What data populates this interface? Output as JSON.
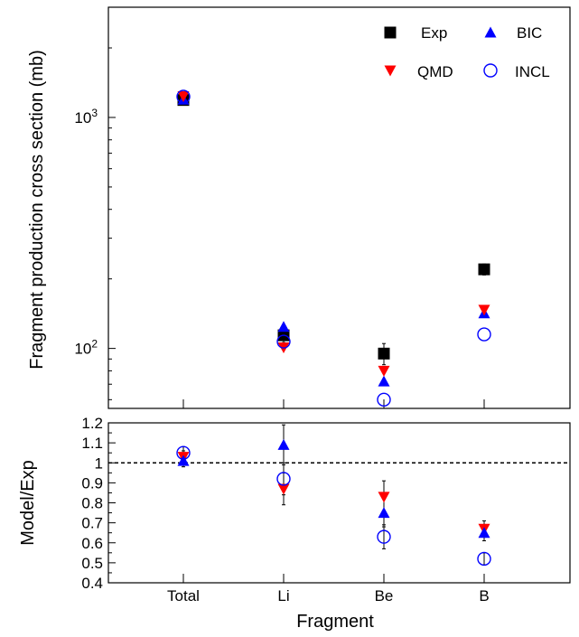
{
  "chart_data": {
    "type": "scatter",
    "xlabel": "Fragment",
    "categories": [
      "Total",
      "Li",
      "Be",
      "B"
    ],
    "colors": {
      "Exp": "#000000",
      "QMD": "#ff0000",
      "BIC": "#0000ff",
      "INCL": "#0000ff"
    },
    "legend": {
      "placement": "top-right",
      "entries": [
        {
          "name": "Exp",
          "marker": "square"
        },
        {
          "name": "BIC",
          "marker": "triangle-up"
        },
        {
          "name": "QMD",
          "marker": "triangle-down"
        },
        {
          "name": "INCL",
          "marker": "circle-open"
        }
      ]
    },
    "top_panel": {
      "ylabel": "Fragment production cross section (mb)",
      "yscale": "log",
      "ylim": [
        55,
        3000
      ],
      "yticks": [
        {
          "value": 100,
          "base": "10",
          "exp": "2"
        },
        {
          "value": 1000,
          "base": "10",
          "exp": "3"
        }
      ],
      "series": [
        {
          "name": "Exp",
          "marker": "square",
          "values": [
            1190,
            114,
            95,
            220
          ],
          "errors": [
            20,
            8,
            10,
            12
          ]
        },
        {
          "name": "QMD",
          "marker": "triangle-down",
          "values": [
            1235,
            101,
            80,
            147
          ],
          "errors": [
            0,
            0,
            0,
            0
          ]
        },
        {
          "name": "BIC",
          "marker": "triangle-up",
          "values": [
            1195,
            124,
            72,
            142
          ],
          "errors": [
            0,
            0,
            0,
            0
          ]
        },
        {
          "name": "INCL",
          "marker": "circle-open",
          "values": [
            1230,
            107,
            60,
            115
          ],
          "errors": [
            0,
            0,
            0,
            0
          ]
        }
      ]
    },
    "bottom_panel": {
      "ylabel": "Model/Exp",
      "yscale": "linear",
      "ylim": [
        0.4,
        1.2
      ],
      "yticks": [
        "0.4",
        "0.5",
        "0.6",
        "0.7",
        "0.8",
        "0.9",
        "1",
        "1.1",
        "1.2"
      ],
      "reference_line": 1.0,
      "series": [
        {
          "name": "QMD",
          "marker": "triangle-down",
          "values": [
            1.03,
            0.87,
            0.83,
            0.67
          ],
          "errors": [
            0.03,
            0.08,
            0.08,
            0.04
          ]
        },
        {
          "name": "BIC",
          "marker": "triangle-up",
          "values": [
            1.01,
            1.09,
            0.75,
            0.65
          ],
          "errors": [
            0.03,
            0.1,
            0.07,
            0.04
          ]
        },
        {
          "name": "INCL",
          "marker": "circle-open",
          "values": [
            1.05,
            0.92,
            0.63,
            0.52
          ],
          "errors": [
            0.03,
            0.08,
            0.06,
            0.03
          ]
        }
      ]
    }
  }
}
